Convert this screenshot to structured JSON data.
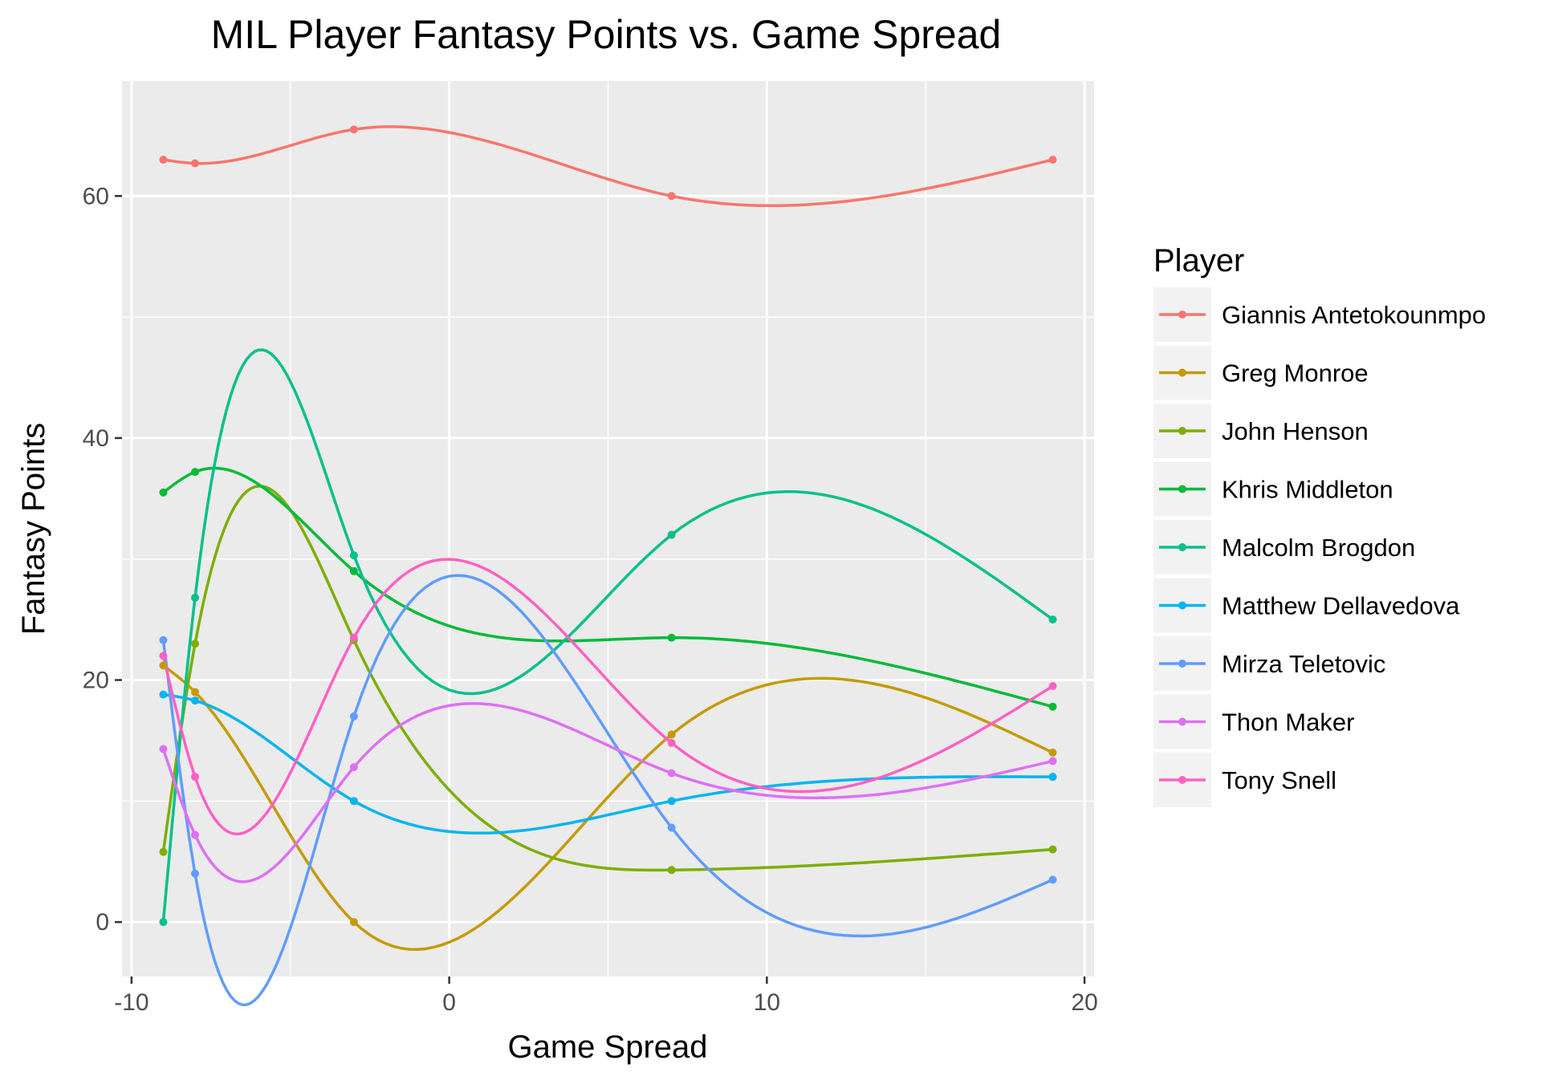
{
  "chart_data": {
    "type": "line",
    "title": "MIL Player Fantasy Points vs. Game Spread",
    "xlabel": "Game Spread",
    "ylabel": "Fantasy Points",
    "xlim": [
      -10.3,
      20.3
    ],
    "ylim": [
      -4.5,
      69.5
    ],
    "x_ticks": [
      -10,
      0,
      10,
      20
    ],
    "x_minor_ticks": [
      -5,
      5,
      15
    ],
    "y_ticks": [
      0,
      20,
      40,
      60
    ],
    "y_minor_ticks": [
      10,
      30,
      50
    ],
    "grid": true,
    "legend": {
      "title": "Player",
      "position": "right"
    },
    "smooth": true,
    "series": [
      {
        "name": "Giannis Antetokounmpo",
        "color": "#F8766D",
        "points": [
          [
            -9,
            63.0
          ],
          [
            -8,
            62.7
          ],
          [
            -3,
            65.5
          ],
          [
            7,
            60.0
          ],
          [
            19,
            63.0
          ]
        ]
      },
      {
        "name": "Greg Monroe",
        "color": "#C49A00",
        "points": [
          [
            -9,
            21.2
          ],
          [
            -8,
            19.0
          ],
          [
            -3,
            0.0
          ],
          [
            7,
            15.5
          ],
          [
            19,
            14.0
          ]
        ]
      },
      {
        "name": "John Henson",
        "color": "#7CAE00",
        "points": [
          [
            -9,
            5.8
          ],
          [
            -8,
            23.0
          ],
          [
            -3,
            23.3
          ],
          [
            7,
            4.3
          ],
          [
            19,
            6.0
          ]
        ]
      },
      {
        "name": "Khris Middleton",
        "color": "#00BA38",
        "points": [
          [
            -9,
            35.5
          ],
          [
            -8,
            37.2
          ],
          [
            -3,
            29.0
          ],
          [
            7,
            23.5
          ],
          [
            19,
            17.8
          ]
        ]
      },
      {
        "name": "Malcolm Brogdon",
        "color": "#00C08B",
        "points": [
          [
            -9,
            0.0
          ],
          [
            -8,
            26.8
          ],
          [
            -3,
            30.3
          ],
          [
            7,
            32.0
          ],
          [
            19,
            25.0
          ]
        ]
      },
      {
        "name": "Matthew Dellavedova",
        "color": "#00B4EF",
        "points": [
          [
            -9,
            18.8
          ],
          [
            -8,
            18.3
          ],
          [
            -3,
            10.0
          ],
          [
            7,
            10.0
          ],
          [
            19,
            12.0
          ]
        ]
      },
      {
        "name": "Mirza Teletovic",
        "color": "#619CFF",
        "points": [
          [
            -9,
            23.3
          ],
          [
            -8,
            4.0
          ],
          [
            -3,
            17.0
          ],
          [
            7,
            7.8
          ],
          [
            19,
            3.5
          ]
        ]
      },
      {
        "name": "Thon Maker",
        "color": "#DE70F5",
        "points": [
          [
            -9,
            14.3
          ],
          [
            -8,
            7.2
          ],
          [
            -3,
            12.8
          ],
          [
            7,
            12.3
          ],
          [
            19,
            13.3
          ]
        ]
      },
      {
        "name": "Tony Snell",
        "color": "#FF61C3",
        "points": [
          [
            -9,
            22.0
          ],
          [
            -8,
            12.0
          ],
          [
            -3,
            23.5
          ],
          [
            7,
            14.8
          ],
          [
            19,
            19.5
          ]
        ]
      }
    ]
  }
}
